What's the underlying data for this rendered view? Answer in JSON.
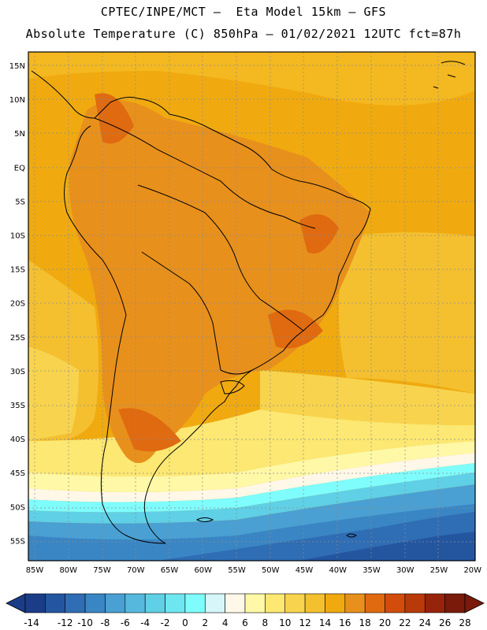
{
  "header": {
    "line1": "CPTEC/INPE/MCT –  Eta Model 15km – GFS",
    "line2": "Absolute Temperature (C) 850hPa – 01/02/2021 12UTC fct=87h"
  },
  "map": {
    "lat_labels": [
      "15N",
      "10N",
      "5N",
      "EQ",
      "5S",
      "10S",
      "15S",
      "20S",
      "25S",
      "30S",
      "35S",
      "40S",
      "45S",
      "50S",
      "55S"
    ],
    "lon_labels": [
      "85W",
      "80W",
      "75W",
      "70W",
      "65W",
      "60W",
      "55W",
      "50W",
      "45W",
      "40W",
      "35W",
      "30W",
      "25W",
      "20W"
    ]
  },
  "colorbar": {
    "labels": [
      "-14",
      "-12",
      "-10",
      "-8",
      "-6",
      "-4",
      "-2",
      "0",
      "2",
      "4",
      "6",
      "8",
      "10",
      "12",
      "14",
      "16",
      "18",
      "20",
      "22",
      "24",
      "26",
      "28"
    ],
    "colors": [
      "#1b3c86",
      "#2456a0",
      "#2f6db4",
      "#3a86c4",
      "#4aa0d2",
      "#56b8dc",
      "#5fd0e6",
      "#6ee6f0",
      "#7ffcfc",
      "#d6f6fa",
      "#fff8e8",
      "#fff8a6",
      "#fce872",
      "#f8d44e",
      "#f4c030",
      "#f0aa10",
      "#e8901c",
      "#e06a10",
      "#d24c0c",
      "#b83a0a",
      "#96240a",
      "#7a1a0a"
    ]
  }
}
